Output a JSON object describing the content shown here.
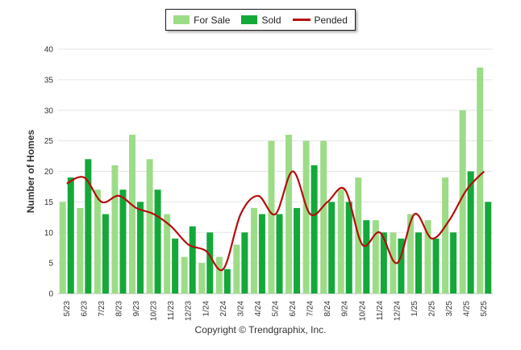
{
  "legend": {
    "for_sale": "For Sale",
    "sold": "Sold",
    "pended": "Pended"
  },
  "copyright": "Copyright © Trendgraphix, Inc.",
  "colors": {
    "for_sale": "#9ddc87",
    "sold": "#14a83a",
    "pended": "#b50d0d",
    "grid": "#e6e6e6",
    "axis_text": "#333333"
  },
  "chart_data": {
    "type": "bar",
    "ylabel": "Number of Homes",
    "xlabel": "",
    "ylim": [
      0,
      40
    ],
    "yticks": [
      0,
      5,
      10,
      15,
      20,
      25,
      30,
      35,
      40
    ],
    "grid": true,
    "legend_position": "top-center",
    "categories": [
      "5/23",
      "6/23",
      "7/23",
      "8/23",
      "9/23",
      "10/23",
      "11/23",
      "12/23",
      "1/24",
      "2/24",
      "3/24",
      "4/24",
      "5/24",
      "6/24",
      "7/24",
      "8/24",
      "9/24",
      "10/24",
      "11/24",
      "12/24",
      "1/25",
      "2/25",
      "3/25",
      "4/25",
      "5/25"
    ],
    "series": [
      {
        "name": "For Sale",
        "type": "bar",
        "values": [
          15,
          14,
          17,
          21,
          26,
          22,
          13,
          6,
          5,
          6,
          8,
          14,
          25,
          26,
          25,
          25,
          17,
          19,
          12,
          10,
          13,
          12,
          19,
          30,
          37
        ]
      },
      {
        "name": "Sold",
        "type": "bar",
        "values": [
          19,
          22,
          13,
          17,
          15,
          17,
          9,
          11,
          10,
          4,
          10,
          13,
          13,
          14,
          21,
          15,
          15,
          12,
          10,
          9,
          10,
          9,
          10,
          20,
          15
        ]
      },
      {
        "name": "Pended",
        "type": "line",
        "values": [
          18,
          19,
          15,
          16,
          14,
          13,
          11,
          8,
          7,
          4,
          13,
          16,
          13,
          20,
          13,
          15,
          17,
          8,
          10,
          5,
          13,
          9,
          12,
          17,
          20
        ]
      }
    ]
  }
}
